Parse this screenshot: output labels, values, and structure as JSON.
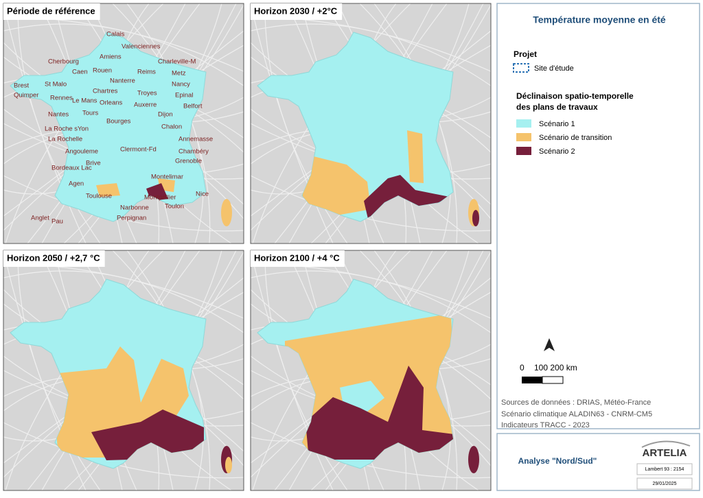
{
  "panels": [
    {
      "title": "Période de référence",
      "labels": [
        "Calais",
        "Valenciennes",
        "Amiens",
        "Charleville-M",
        "Cherbourg",
        "Caen",
        "Rouen",
        "Reims",
        "Metz",
        "Nanterre",
        "Nancy",
        "Brest",
        "St Malo",
        "Quimper",
        "Rennes",
        "Chartres",
        "Troyes",
        "Epinal",
        "Le Mans",
        "Orleans",
        "Auxerre",
        "Belfort",
        "Nantes",
        "Tours",
        "Dijon",
        "Bourges",
        "La Roche sYon",
        "Chalon",
        "La Rochelle",
        "Annemasse",
        "Angouleme",
        "Clermont-Fd",
        "Chambéry",
        "Brive",
        "Grenoble",
        "Bordeaux Lac",
        "Montelimar",
        "Agen",
        "Toulouse",
        "Montpellier",
        "Nice",
        "Anglet",
        "Pau",
        "Narbonne",
        "Toulon",
        "Perpignan"
      ]
    },
    {
      "title": "Horizon 2030 / +2°C"
    },
    {
      "title": "Horizon 2050 / +2,7 °C"
    },
    {
      "title": "Horizon 2100 / +4 °C"
    }
  ],
  "legend": {
    "title": "Température moyenne en été",
    "project_heading": "Projet",
    "site": "Site d'étude",
    "heading": [
      "Déclinaison spatio-temporelle",
      "des plans de travaux"
    ],
    "items": [
      "Scénario 1",
      "Scénario de transition",
      "Scénario 2"
    ],
    "scale": [
      "0",
      "100 200 km"
    ],
    "sources": [
      "Sources de données : DRIAS, Météo-France",
      "Scénario climatique ALADIN63 - CNRM-CM5",
      "Indicateurs TRACC - 2023"
    ]
  },
  "footer": {
    "title": "Analyse \"Nord/Sud\"",
    "logo": "ARTELIA",
    "projection": "Lambert 93 : 2154",
    "date": "29/01/2025"
  }
}
